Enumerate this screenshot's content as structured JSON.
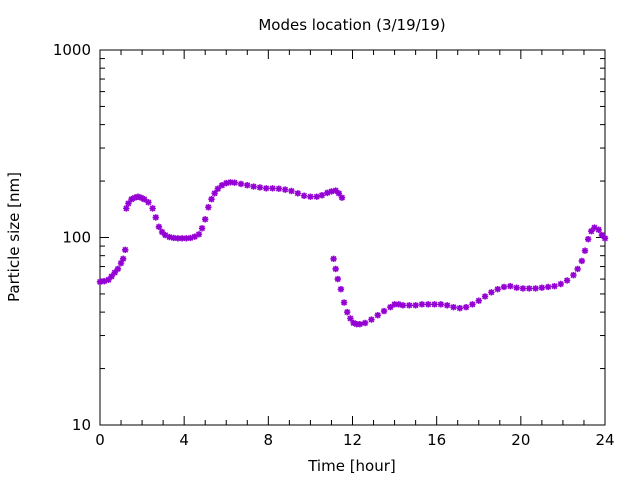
{
  "chart_data": {
    "type": "scatter",
    "title": "Modes location (3/19/19)",
    "xlabel": "Time [hour]",
    "ylabel": "Particle size [nm]",
    "xlim": [
      0,
      24
    ],
    "ylim": [
      10,
      1000
    ],
    "yscale": "log",
    "xticks": [
      "0",
      "4",
      "8",
      "12",
      "16",
      "20",
      "24"
    ],
    "yticks": [
      "10",
      "100",
      "1000"
    ],
    "grid": false,
    "marker_color": "#9400d3",
    "series": [
      {
        "values": [
          [
            0.0,
            58
          ],
          [
            0.2,
            58.5
          ],
          [
            0.4,
            59.5
          ],
          [
            0.55,
            62
          ],
          [
            0.7,
            65
          ],
          [
            0.85,
            68
          ],
          [
            1.0,
            73
          ],
          [
            1.1,
            77
          ],
          [
            1.2,
            86
          ],
          [
            1.25,
            143
          ],
          [
            1.35,
            152
          ],
          [
            1.5,
            160
          ],
          [
            1.65,
            163
          ],
          [
            1.8,
            165
          ],
          [
            1.95,
            163
          ],
          [
            2.1,
            160
          ],
          [
            2.3,
            154
          ],
          [
            2.5,
            143
          ],
          [
            2.65,
            128
          ],
          [
            2.8,
            114
          ],
          [
            2.95,
            107
          ],
          [
            3.1,
            103
          ],
          [
            3.3,
            100.5
          ],
          [
            3.5,
            99.5
          ],
          [
            3.7,
            99
          ],
          [
            3.9,
            99
          ],
          [
            4.1,
            99
          ],
          [
            4.3,
            99.5
          ],
          [
            4.5,
            101
          ],
          [
            4.7,
            104
          ],
          [
            4.85,
            112
          ],
          [
            5.0,
            125
          ],
          [
            5.15,
            145
          ],
          [
            5.3,
            160
          ],
          [
            5.45,
            172
          ],
          [
            5.6,
            182
          ],
          [
            5.8,
            190
          ],
          [
            6.0,
            195
          ],
          [
            6.2,
            197
          ],
          [
            6.4,
            196
          ],
          [
            6.7,
            193
          ],
          [
            7.0,
            190
          ],
          [
            7.3,
            187
          ],
          [
            7.6,
            185
          ],
          [
            7.9,
            183
          ],
          [
            8.2,
            183
          ],
          [
            8.5,
            182
          ],
          [
            8.8,
            180
          ],
          [
            9.1,
            177
          ],
          [
            9.4,
            172
          ],
          [
            9.7,
            167
          ],
          [
            10.0,
            165
          ],
          [
            10.3,
            165
          ],
          [
            10.55,
            168
          ],
          [
            10.8,
            173
          ],
          [
            11.0,
            176
          ],
          [
            11.2,
            178
          ],
          [
            11.35,
            172
          ],
          [
            11.5,
            163
          ],
          [
            11.1,
            77
          ],
          [
            11.2,
            68
          ],
          [
            11.3,
            60
          ],
          [
            11.45,
            53
          ],
          [
            11.6,
            45
          ],
          [
            11.75,
            40
          ],
          [
            11.9,
            37
          ],
          [
            12.05,
            35
          ],
          [
            12.2,
            34.5
          ],
          [
            12.35,
            34.5
          ],
          [
            12.6,
            35
          ],
          [
            12.9,
            36.5
          ],
          [
            13.2,
            38.5
          ],
          [
            13.5,
            40.5
          ],
          [
            13.8,
            42.5
          ],
          [
            14.0,
            44
          ],
          [
            14.2,
            44
          ],
          [
            14.4,
            43.5
          ],
          [
            14.7,
            43.5
          ],
          [
            15.0,
            43.5
          ],
          [
            15.3,
            44
          ],
          [
            15.6,
            44
          ],
          [
            15.9,
            44
          ],
          [
            16.2,
            44
          ],
          [
            16.5,
            43.5
          ],
          [
            16.8,
            42.5
          ],
          [
            17.1,
            42
          ],
          [
            17.4,
            42.5
          ],
          [
            17.7,
            44
          ],
          [
            18.0,
            46
          ],
          [
            18.3,
            48.5
          ],
          [
            18.6,
            51
          ],
          [
            18.9,
            53
          ],
          [
            19.2,
            54.5
          ],
          [
            19.5,
            55
          ],
          [
            19.8,
            54
          ],
          [
            20.1,
            53.5
          ],
          [
            20.4,
            53.5
          ],
          [
            20.7,
            53.5
          ],
          [
            21.0,
            54
          ],
          [
            21.3,
            54.5
          ],
          [
            21.6,
            55
          ],
          [
            21.9,
            56.5
          ],
          [
            22.2,
            59
          ],
          [
            22.5,
            63
          ],
          [
            22.7,
            68
          ],
          [
            22.9,
            75
          ],
          [
            23.05,
            85
          ],
          [
            23.2,
            98
          ],
          [
            23.35,
            108
          ],
          [
            23.5,
            113
          ],
          [
            23.7,
            110
          ],
          [
            23.85,
            103
          ],
          [
            24.0,
            99
          ]
        ]
      }
    ]
  }
}
